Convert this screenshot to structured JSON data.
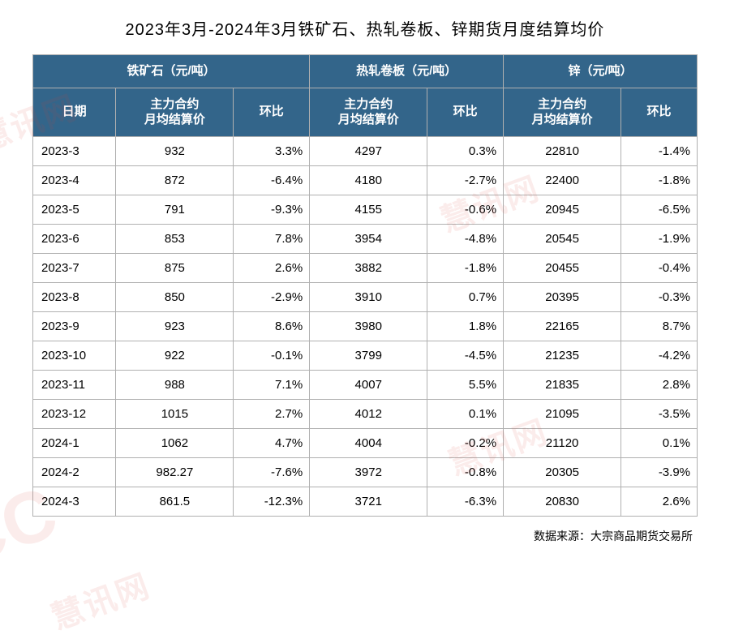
{
  "title": "2023年3月-2024年3月铁矿石、热轧卷板、锌期货月度结算均价",
  "source_label": "数据来源：大宗商品期货交易所",
  "watermark_text": "慧讯网",
  "watermark_big": "CC",
  "header_bg": "#33658a",
  "header_color": "#ffffff",
  "border_color": "#b0b0b0",
  "groups": [
    {
      "name": "铁矿石（元/吨）"
    },
    {
      "name": "热轧卷板（元/吨）"
    },
    {
      "name": "锌（元/吨）"
    }
  ],
  "subheaders": {
    "date": "日期",
    "price": "主力合约\n月均结算价",
    "pct": "环比"
  },
  "rows": [
    {
      "date": "2023-3",
      "p1": "932",
      "c1": "3.3%",
      "p2": "4297",
      "c2": "0.3%",
      "p3": "22810",
      "c3": "-1.4%"
    },
    {
      "date": "2023-4",
      "p1": "872",
      "c1": "-6.4%",
      "p2": "4180",
      "c2": "-2.7%",
      "p3": "22400",
      "c3": "-1.8%"
    },
    {
      "date": "2023-5",
      "p1": "791",
      "c1": "-9.3%",
      "p2": "4155",
      "c2": "-0.6%",
      "p3": "20945",
      "c3": "-6.5%"
    },
    {
      "date": "2023-6",
      "p1": "853",
      "c1": "7.8%",
      "p2": "3954",
      "c2": "-4.8%",
      "p3": "20545",
      "c3": "-1.9%"
    },
    {
      "date": "2023-7",
      "p1": "875",
      "c1": "2.6%",
      "p2": "3882",
      "c2": "-1.8%",
      "p3": "20455",
      "c3": "-0.4%"
    },
    {
      "date": "2023-8",
      "p1": "850",
      "c1": "-2.9%",
      "p2": "3910",
      "c2": "0.7%",
      "p3": "20395",
      "c3": "-0.3%"
    },
    {
      "date": "2023-9",
      "p1": "923",
      "c1": "8.6%",
      "p2": "3980",
      "c2": "1.8%",
      "p3": "22165",
      "c3": "8.7%"
    },
    {
      "date": "2023-10",
      "p1": "922",
      "c1": "-0.1%",
      "p2": "3799",
      "c2": "-4.5%",
      "p3": "21235",
      "c3": "-4.2%"
    },
    {
      "date": "2023-11",
      "p1": "988",
      "c1": "7.1%",
      "p2": "4007",
      "c2": "5.5%",
      "p3": "21835",
      "c3": "2.8%"
    },
    {
      "date": "2023-12",
      "p1": "1015",
      "c1": "2.7%",
      "p2": "4012",
      "c2": "0.1%",
      "p3": "21095",
      "c3": "-3.5%"
    },
    {
      "date": "2024-1",
      "p1": "1062",
      "c1": "4.7%",
      "p2": "4004",
      "c2": "-0.2%",
      "p3": "21120",
      "c3": "0.1%"
    },
    {
      "date": "2024-2",
      "p1": "982.27",
      "c1": "-7.6%",
      "p2": "3972",
      "c2": "-0.8%",
      "p3": "20305",
      "c3": "-3.9%"
    },
    {
      "date": "2024-3",
      "p1": "861.5",
      "c1": "-12.3%",
      "p2": "3721",
      "c2": "-6.3%",
      "p3": "20830",
      "c3": "2.6%"
    }
  ]
}
